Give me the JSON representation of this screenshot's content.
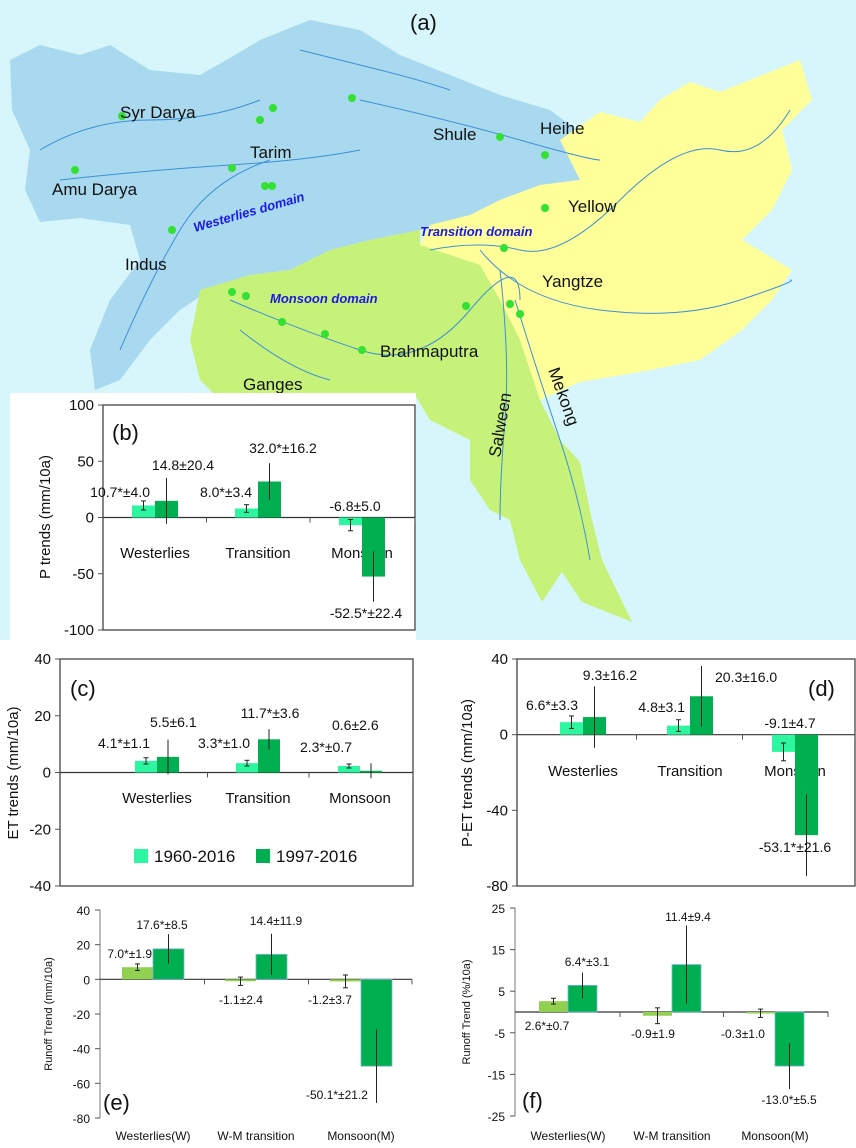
{
  "map": {
    "panel_label": "(a)",
    "colors": {
      "background": "#d6f6fb",
      "westerlies": "#a9d9ef",
      "transition": "#ffff99",
      "monsoon": "#c6f27a",
      "river": "#3d8fd6",
      "station": "#33e033"
    },
    "domain_labels": [
      "Westerlies domain",
      "Transition domain",
      "Monsoon domain"
    ],
    "basin_labels": [
      "Syr Darya",
      "Amu Darya",
      "Tarim",
      "Indus",
      "Shule",
      "Heihe",
      "Yellow",
      "Yangtze",
      "Brahmaputra",
      "Ganges",
      "Salween",
      "Mekong"
    ]
  },
  "legend": {
    "series": [
      "1960-2016",
      "1997-2016"
    ]
  },
  "chart_data": [
    {
      "id": "b",
      "type": "bar",
      "panel_label": "(b)",
      "ylabel": "P trends (mm/10a)",
      "ylim": [
        -100,
        100
      ],
      "yticks": [
        "100",
        "50",
        "0",
        "-50",
        "-100"
      ],
      "ytick_values": [
        100,
        50,
        0,
        -50,
        -100
      ],
      "categories": [
        "Westerlies",
        "Transition",
        "Monsoon"
      ],
      "colors": [
        "#2ef5a0",
        "#00b050"
      ],
      "series": [
        {
          "name": "1960-2016",
          "values": [
            10.7,
            8.0,
            -6.8
          ],
          "errors": [
            4.0,
            3.4,
            5.0
          ],
          "labels": [
            "10.7*±4.0",
            "8.0*±3.4",
            "-6.8±5.0"
          ]
        },
        {
          "name": "1997-2016",
          "values": [
            14.8,
            32.0,
            -52.5
          ],
          "errors": [
            20.4,
            16.2,
            22.4
          ],
          "labels": [
            "14.8±20.4",
            "32.0*±16.2",
            "-52.5*±22.4"
          ]
        }
      ]
    },
    {
      "id": "c",
      "type": "bar",
      "panel_label": "(c)",
      "ylabel": "ET trends (mm/10a)",
      "ylim": [
        -40,
        40
      ],
      "yticks": [
        "40",
        "20",
        "0",
        "-20",
        "-40"
      ],
      "ytick_values": [
        40,
        20,
        0,
        -20,
        -40
      ],
      "categories": [
        "Westerlies",
        "Transition",
        "Monsoon"
      ],
      "colors": [
        "#2ef5a0",
        "#00b050"
      ],
      "series": [
        {
          "name": "1960-2016",
          "values": [
            4.1,
            3.3,
            2.3
          ],
          "errors": [
            1.1,
            1.0,
            0.7
          ],
          "labels": [
            "4.1*±1.1",
            "3.3*±1.0",
            "2.3*±0.7"
          ]
        },
        {
          "name": "1997-2016",
          "values": [
            5.5,
            11.7,
            0.6
          ],
          "errors": [
            6.1,
            3.6,
            2.6
          ],
          "labels": [
            "5.5±6.1",
            "11.7*±3.6",
            "0.6±2.6"
          ]
        }
      ]
    },
    {
      "id": "d",
      "type": "bar",
      "panel_label": "(d)",
      "ylabel": "P-ET trends (mm/10a)",
      "ylim": [
        -80,
        40
      ],
      "yticks": [
        "40",
        "0",
        "-40",
        "-80"
      ],
      "ytick_values": [
        40,
        0,
        -40,
        -80
      ],
      "categories": [
        "Westerlies",
        "Transition",
        "Monsoon"
      ],
      "colors": [
        "#2ef5a0",
        "#00b050"
      ],
      "series": [
        {
          "name": "1960-2016",
          "values": [
            6.6,
            4.8,
            -9.1
          ],
          "errors": [
            3.3,
            3.1,
            4.7
          ],
          "labels": [
            "6.6*±3.3",
            "4.8±3.1",
            "-9.1±4.7"
          ]
        },
        {
          "name": "1997-2016",
          "values": [
            9.3,
            20.3,
            -53.1
          ],
          "errors": [
            16.2,
            16.0,
            21.6
          ],
          "labels": [
            "9.3±16.2",
            "20.3±16.0",
            "-53.1*±21.6"
          ]
        }
      ]
    },
    {
      "id": "e",
      "type": "bar",
      "panel_label": "(e)",
      "ylabel": "Runoff Trend (mm/10a)",
      "ylim": [
        -80,
        40
      ],
      "yticks": [
        "40",
        "20",
        "0",
        "-20",
        "-40",
        "-60",
        "-80"
      ],
      "ytick_values": [
        40,
        20,
        0,
        -20,
        -40,
        -60,
        -80
      ],
      "categories": [
        "Westerlies(W)",
        "W-M transition",
        "Monsoon(M)"
      ],
      "colors": [
        "#92d050",
        "#00b050"
      ],
      "series": [
        {
          "name": "1960-2016",
          "values": [
            7.0,
            -1.1,
            -1.2
          ],
          "errors": [
            1.9,
            2.4,
            3.7
          ],
          "labels": [
            "7.0*±1.9",
            "-1.1±2.4",
            "-1.2±3.7"
          ]
        },
        {
          "name": "1997-2016",
          "values": [
            17.6,
            14.4,
            -50.1
          ],
          "errors": [
            8.5,
            11.9,
            21.2
          ],
          "labels": [
            "17.6*±8.5",
            "14.4±11.9",
            "-50.1*±21.2"
          ]
        }
      ]
    },
    {
      "id": "f",
      "type": "bar",
      "panel_label": "(f)",
      "ylabel": "Runoff Trend (%/10a)",
      "ylim": [
        -25,
        25
      ],
      "yticks": [
        "25",
        "15",
        "5",
        "-5",
        "-15",
        "-25"
      ],
      "ytick_values": [
        25,
        15,
        5,
        -5,
        -15,
        -25
      ],
      "categories": [
        "Westerlies(W)",
        "W-M transition",
        "Monsoon(M)"
      ],
      "colors": [
        "#92d050",
        "#00b050"
      ],
      "series": [
        {
          "name": "1960-2016",
          "values": [
            2.6,
            -0.9,
            -0.3
          ],
          "errors": [
            0.7,
            1.9,
            1.0
          ],
          "labels": [
            "2.6*±0.7",
            "-0.9±1.9",
            "-0.3±1.0"
          ]
        },
        {
          "name": "1997-2016",
          "values": [
            6.4,
            11.4,
            -13.0
          ],
          "errors": [
            3.1,
            9.4,
            5.5
          ],
          "labels": [
            "6.4*±3.1",
            "11.4±9.4",
            "-13.0*±5.5"
          ]
        }
      ]
    }
  ]
}
